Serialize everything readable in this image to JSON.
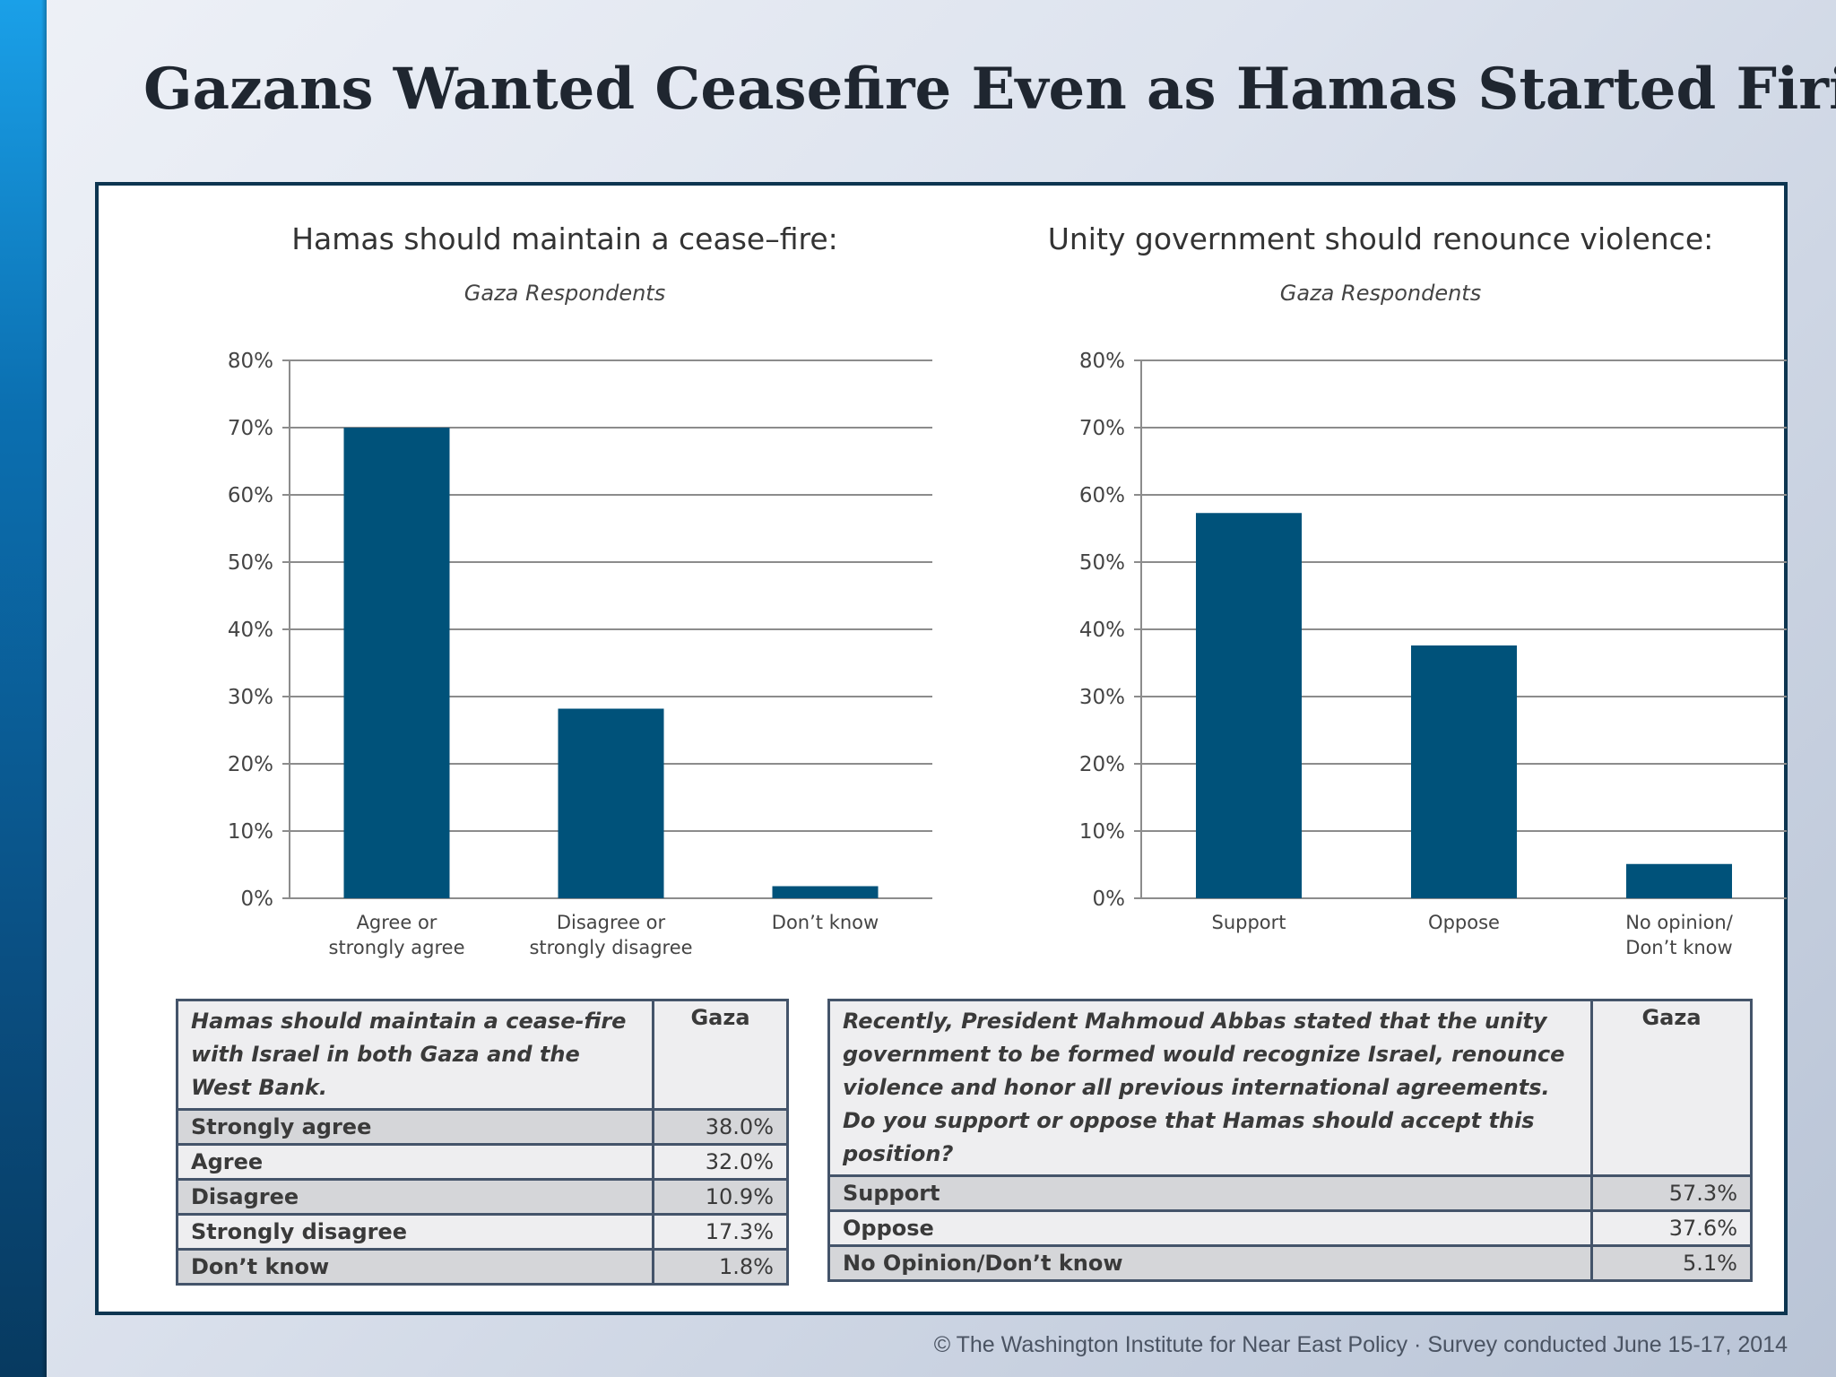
{
  "slide": {
    "title": "Gazans Wanted Ceasefire Even as Hamas Started Firing Rockets"
  },
  "colors": {
    "bar": "#00527a",
    "grid": "#8c8c8c",
    "frame": "#0d3550",
    "accent_side": "#1aa0e8"
  },
  "chart_data": [
    {
      "type": "bar",
      "title": "Hamas should maintain a cease–fire:",
      "subtitle": "Gaza Respondents",
      "categories": [
        [
          "Agree or",
          "strongly agree"
        ],
        [
          "Disagree or",
          "strongly disagree"
        ],
        [
          "Don’t know"
        ]
      ],
      "values": [
        70.0,
        28.2,
        1.8
      ],
      "ylim": [
        0,
        80
      ],
      "yticks": [
        "0%",
        "10%",
        "20%",
        "30%",
        "40%",
        "50%",
        "60%",
        "70%",
        "80%"
      ],
      "grid": true,
      "xlabel": "",
      "ylabel": ""
    },
    {
      "type": "bar",
      "title": "Unity government should renounce violence:",
      "subtitle": "Gaza Respondents",
      "categories": [
        [
          "Support"
        ],
        [
          "Oppose"
        ],
        [
          "No opinion/",
          "Don’t know"
        ]
      ],
      "values": [
        57.3,
        37.6,
        5.1
      ],
      "ylim": [
        0,
        80
      ],
      "yticks": [
        "0%",
        "10%",
        "20%",
        "30%",
        "40%",
        "50%",
        "60%",
        "70%",
        "80%"
      ],
      "grid": true,
      "xlabel": "",
      "ylabel": ""
    }
  ],
  "tables": {
    "left": {
      "question": "Hamas should maintain a cease-fire with Israel in both Gaza and the West Bank.",
      "header": "Gaza",
      "rows": [
        {
          "label": "Strongly agree",
          "value": "38.0%"
        },
        {
          "label": "Agree",
          "value": "32.0%"
        },
        {
          "label": "Disagree",
          "value": "10.9%"
        },
        {
          "label": "Strongly disagree",
          "value": "17.3%"
        },
        {
          "label": "Don’t know",
          "value": "1.8%"
        }
      ]
    },
    "right": {
      "question": "Recently, President Mahmoud Abbas stated that the unity government to be formed would recognize Israel, renounce violence and honor all previous international agreements. Do you support or oppose that Hamas should accept this position?",
      "header": "Gaza",
      "rows": [
        {
          "label": "Support",
          "value": "57.3%"
        },
        {
          "label": "Oppose",
          "value": "37.6%"
        },
        {
          "label": "No Opinion/Don’t know",
          "value": "5.1%"
        }
      ]
    }
  },
  "footer": "© The Washington Institute for Near East Policy  ·  Survey conducted June 15-17, 2014"
}
